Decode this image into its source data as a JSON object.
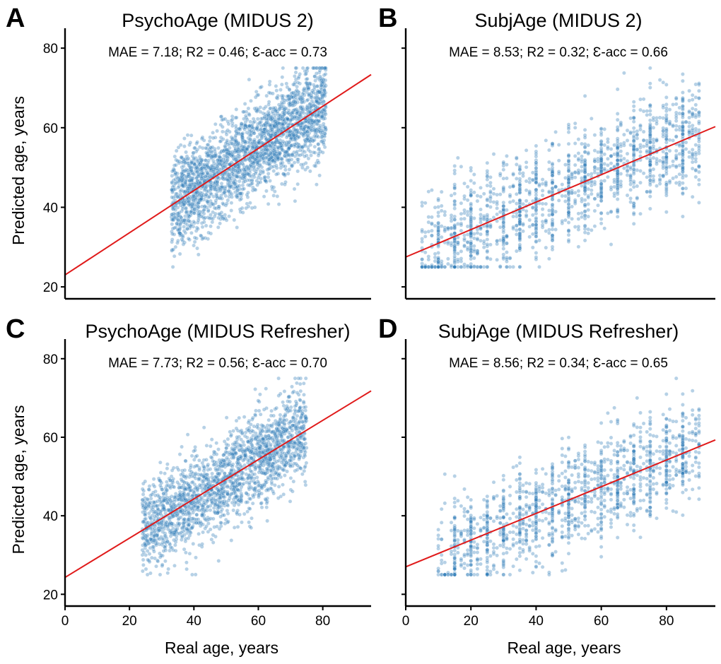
{
  "colors": {
    "points": "#2f7bb8",
    "fit_line": "#e01a1a",
    "axes": "#000000"
  },
  "chart_data": [
    {
      "type": "scatter",
      "panel": "A",
      "title": "PsychoAge (MIDUS 2)",
      "metrics": "MAE = 7.18; R2 = 0.46; Ɛ-acc = 0.73",
      "xlabel": "",
      "ylabel": "Predicted age, years",
      "xlim": [
        0,
        95
      ],
      "ylim": [
        17,
        85
      ],
      "xticks": [],
      "yticks": [
        20,
        40,
        60,
        80
      ],
      "point_cloud": {
        "x_range": [
          33,
          81
        ],
        "x_integer": false,
        "fit_intercept": 23.0,
        "fit_slope": 0.53,
        "spread_sd": 6.0,
        "n_points": 2400,
        "alpha": 0.35
      },
      "fit_line": {
        "intercept": 23.0,
        "slope": 0.53,
        "x_range": [
          0,
          95
        ]
      }
    },
    {
      "type": "scatter",
      "panel": "B",
      "title": "SubjAge (MIDUS 2)",
      "metrics": "MAE = 8.53; R2 = 0.32; Ɛ-acc = 0.66",
      "xlabel": "",
      "ylabel": "",
      "xlim": [
        0,
        95
      ],
      "ylim": [
        17,
        85
      ],
      "xticks": [],
      "yticks": [
        20,
        40,
        60,
        80
      ],
      "point_cloud": {
        "x_range": [
          5,
          90
        ],
        "x_integer": true,
        "fit_intercept": 27.5,
        "fit_slope": 0.345,
        "spread_sd": 6.8,
        "n_points": 1700,
        "alpha": 0.35
      },
      "fit_line": {
        "intercept": 27.5,
        "slope": 0.345,
        "x_range": [
          0,
          95
        ]
      }
    },
    {
      "type": "scatter",
      "panel": "C",
      "title": "PsychoAge (MIDUS Refresher)",
      "metrics": "MAE = 7.73; R2 = 0.56; Ɛ-acc = 0.70",
      "xlabel": "Real age, years",
      "ylabel": "Predicted age, years",
      "xlim": [
        0,
        95
      ],
      "ylim": [
        17,
        85
      ],
      "xticks": [
        0,
        20,
        40,
        60,
        80
      ],
      "yticks": [
        20,
        40,
        60,
        80
      ],
      "point_cloud": {
        "x_range": [
          24,
          75
        ],
        "x_integer": false,
        "fit_intercept": 24.3,
        "fit_slope": 0.5,
        "spread_sd": 5.8,
        "n_points": 2000,
        "alpha": 0.35
      },
      "fit_line": {
        "intercept": 24.3,
        "slope": 0.5,
        "x_range": [
          0,
          95
        ]
      }
    },
    {
      "type": "scatter",
      "panel": "D",
      "title": "SubjAge (MIDUS Refresher)",
      "metrics": "MAE = 8.56; R2 = 0.34; Ɛ-acc = 0.65",
      "xlabel": "Real age, years",
      "ylabel": "",
      "xlim": [
        0,
        95
      ],
      "ylim": [
        17,
        85
      ],
      "xticks": [
        0,
        20,
        40,
        60,
        80
      ],
      "yticks": [
        20,
        40,
        60,
        80
      ],
      "point_cloud": {
        "x_range": [
          10,
          90
        ],
        "x_integer": true,
        "fit_intercept": 27.0,
        "fit_slope": 0.34,
        "spread_sd": 6.5,
        "n_points": 1500,
        "alpha": 0.35
      },
      "fit_line": {
        "intercept": 27.0,
        "slope": 0.34,
        "x_range": [
          0,
          95
        ]
      }
    }
  ]
}
